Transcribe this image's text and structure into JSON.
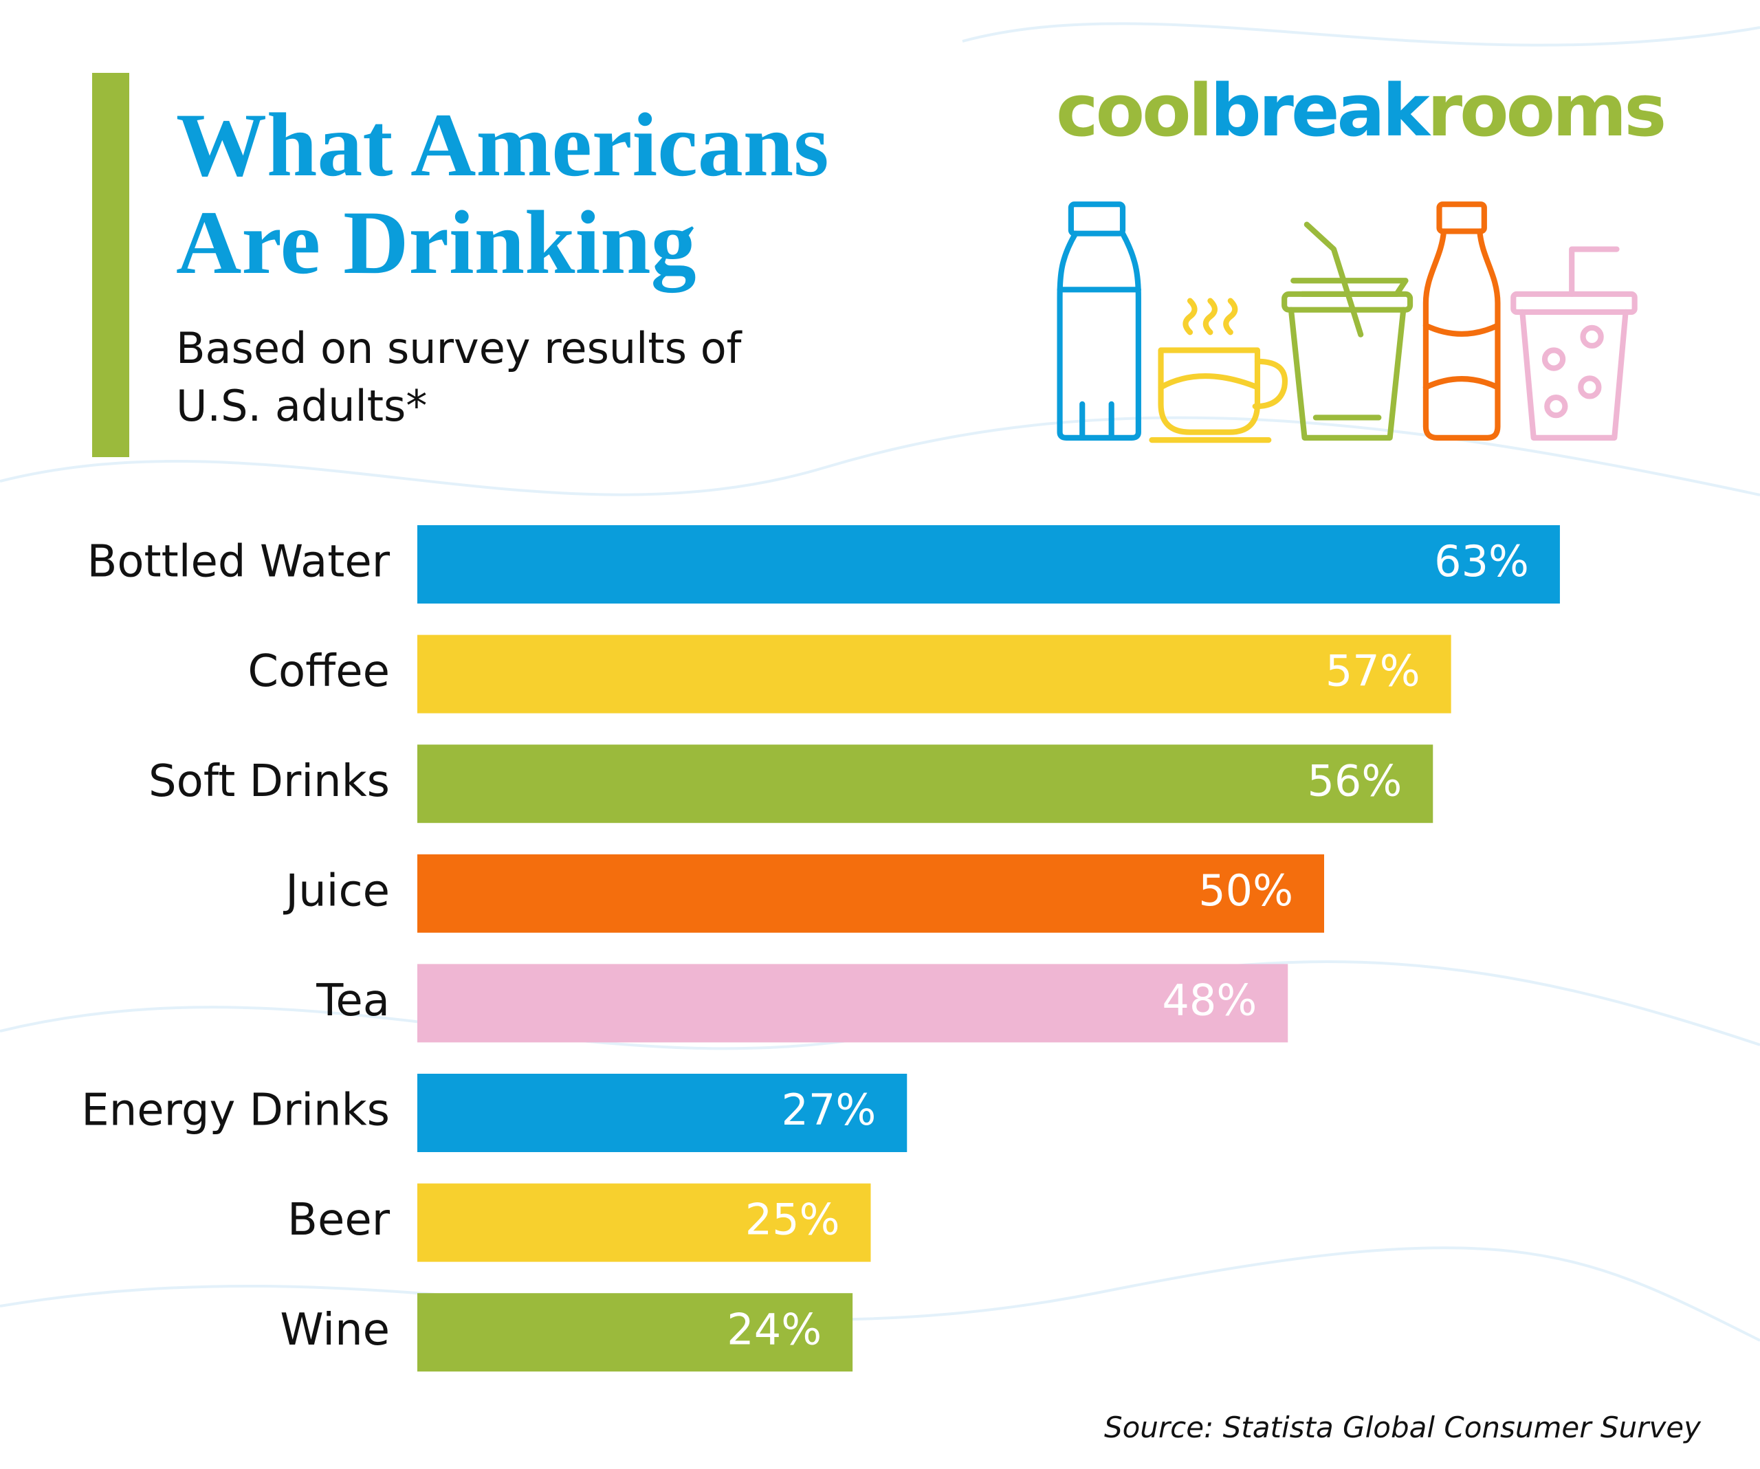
{
  "chart_data": {
    "type": "bar",
    "orientation": "horizontal",
    "title": "What Americans Are Drinking",
    "subtitle": "Based on survey results of U.S. adults*",
    "logo": [
      "cool",
      "break",
      "rooms"
    ],
    "source": "Source: Statista Global Consumer Survey",
    "categories": [
      "Bottled Water",
      "Coffee",
      "Soft Drinks",
      "Juice",
      "Tea",
      "Energy Drinks",
      "Beer",
      "Wine"
    ],
    "values": [
      63,
      57,
      56,
      50,
      48,
      27,
      25,
      24
    ],
    "value_labels": [
      "63%",
      "57%",
      "56%",
      "50%",
      "48%",
      "27%",
      "25%",
      "24%"
    ],
    "colors": [
      "#0a9ddb",
      "#f7d02e",
      "#9bba3c",
      "#f46e0d",
      "#efb6d3",
      "#0a9ddb",
      "#f7d02e",
      "#9bba3c"
    ]
  }
}
